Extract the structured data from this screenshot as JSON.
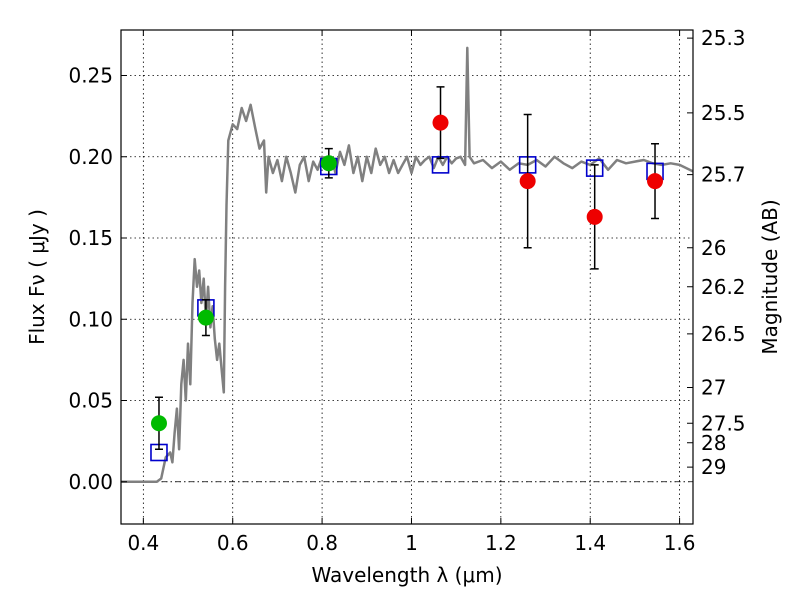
{
  "chart_data": {
    "type": "scatter",
    "xlabel": "Wavelength  λ (μm)",
    "ylabel": "Flux  Fν  ( μJy )",
    "ylabel_right": "Magnitude (AB)",
    "xlim": [
      0.35,
      1.63
    ],
    "ylim": [
      -0.026,
      0.278
    ],
    "x_ticks": [
      0.4,
      0.6,
      0.8,
      1.0,
      1.2,
      1.4,
      1.6
    ],
    "x_tick_labels": [
      "0.4",
      "0.6",
      "0.8",
      "1",
      "1.2",
      "1.4",
      "1.6"
    ],
    "y_ticks": [
      0.0,
      0.05,
      0.1,
      0.15,
      0.2,
      0.25
    ],
    "y_tick_labels": [
      "0.00",
      "0.05",
      "0.10",
      "0.15",
      "0.20",
      "0.25"
    ],
    "right_ticks": [
      {
        "label": "25.3",
        "flux": 0.273
      },
      {
        "label": "25.5",
        "flux": 0.227
      },
      {
        "label": "25.7",
        "flux": 0.189
      },
      {
        "label": "26",
        "flux": 0.144
      },
      {
        "label": "26.2",
        "flux": 0.12
      },
      {
        "label": "26.5",
        "flux": 0.091
      },
      {
        "label": "27",
        "flux": 0.058
      },
      {
        "label": "27.5",
        "flux": 0.036
      },
      {
        "label": "28",
        "flux": 0.024
      },
      {
        "label": "29",
        "flux": 0.009
      }
    ],
    "grid": true,
    "series": [
      {
        "kind": "line",
        "color": "#808080",
        "x": [
          0.35,
          0.43,
          0.44,
          0.45,
          0.46,
          0.465,
          0.47,
          0.475,
          0.48,
          0.485,
          0.49,
          0.495,
          0.5,
          0.505,
          0.51,
          0.515,
          0.52,
          0.525,
          0.53,
          0.535,
          0.54,
          0.545,
          0.55,
          0.555,
          0.56,
          0.565,
          0.57,
          0.575,
          0.58,
          0.583,
          0.586,
          0.59,
          0.6,
          0.61,
          0.62,
          0.63,
          0.64,
          0.65,
          0.66,
          0.67,
          0.675,
          0.68,
          0.69,
          0.7,
          0.71,
          0.72,
          0.73,
          0.74,
          0.75,
          0.76,
          0.77,
          0.78,
          0.79,
          0.8,
          0.81,
          0.82,
          0.83,
          0.84,
          0.85,
          0.86,
          0.87,
          0.88,
          0.89,
          0.9,
          0.91,
          0.92,
          0.93,
          0.94,
          0.95,
          0.96,
          0.97,
          0.98,
          0.99,
          1.0,
          1.01,
          1.02,
          1.03,
          1.04,
          1.05,
          1.06,
          1.07,
          1.08,
          1.09,
          1.1,
          1.11,
          1.12,
          1.125,
          1.13,
          1.14,
          1.16,
          1.18,
          1.2,
          1.22,
          1.24,
          1.26,
          1.28,
          1.3,
          1.32,
          1.34,
          1.36,
          1.38,
          1.4,
          1.42,
          1.44,
          1.46,
          1.48,
          1.5,
          1.52,
          1.54,
          1.56,
          1.58,
          1.6,
          1.63
        ],
        "y": [
          0.0,
          0.0,
          0.002,
          0.015,
          0.018,
          0.012,
          0.03,
          0.045,
          0.02,
          0.06,
          0.075,
          0.05,
          0.085,
          0.06,
          0.11,
          0.137,
          0.12,
          0.13,
          0.11,
          0.125,
          0.1,
          0.12,
          0.095,
          0.108,
          0.088,
          0.075,
          0.085,
          0.07,
          0.055,
          0.12,
          0.17,
          0.21,
          0.22,
          0.217,
          0.23,
          0.222,
          0.232,
          0.218,
          0.205,
          0.21,
          0.178,
          0.2,
          0.19,
          0.198,
          0.185,
          0.2,
          0.19,
          0.178,
          0.195,
          0.2,
          0.185,
          0.197,
          0.192,
          0.2,
          0.196,
          0.2,
          0.19,
          0.203,
          0.195,
          0.207,
          0.19,
          0.2,
          0.185,
          0.2,
          0.19,
          0.205,
          0.195,
          0.2,
          0.19,
          0.198,
          0.19,
          0.195,
          0.2,
          0.19,
          0.2,
          0.195,
          0.198,
          0.2,
          0.193,
          0.2,
          0.195,
          0.2,
          0.196,
          0.199,
          0.2,
          0.195,
          0.267,
          0.2,
          0.196,
          0.198,
          0.193,
          0.197,
          0.192,
          0.196,
          0.195,
          0.198,
          0.194,
          0.2,
          0.196,
          0.193,
          0.197,
          0.195,
          0.199,
          0.192,
          0.198,
          0.196,
          0.197,
          0.198,
          0.196,
          0.195,
          0.196,
          0.195,
          0.191
        ]
      },
      {
        "kind": "open-squares",
        "color": "#0000cc",
        "x": [
          0.435,
          0.54,
          0.815,
          1.065,
          1.26,
          1.41,
          1.545
        ],
        "y": [
          0.018,
          0.107,
          0.194,
          0.195,
          0.195,
          0.193,
          0.191
        ]
      },
      {
        "kind": "filled-circles",
        "color": "#00bb00",
        "x": [
          0.435,
          0.54,
          0.815
        ],
        "y": [
          0.036,
          0.101,
          0.196
        ],
        "yerr": [
          0.016,
          0.011,
          0.009
        ]
      },
      {
        "kind": "filled-circles",
        "color": "#ee0000",
        "x": [
          1.065,
          1.26,
          1.41,
          1.545
        ],
        "y": [
          0.221,
          0.185,
          0.163,
          0.185
        ],
        "yerr": [
          0.022,
          0.041,
          0.032,
          0.023
        ]
      }
    ]
  }
}
